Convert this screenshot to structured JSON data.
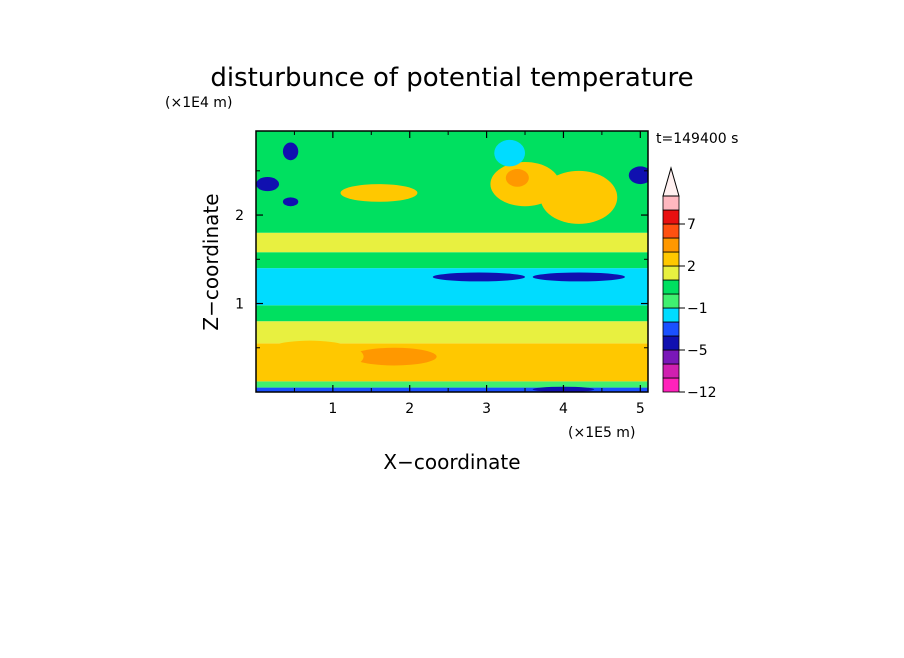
{
  "chart_data": {
    "type": "heatmap",
    "title": "disturbunce of potential temperature",
    "time_label": "t=149400 s",
    "xlabel": "X−coordinate",
    "ylabel": "Z−coordinate",
    "x_unit": "(×1E5 m)",
    "y_unit": "(×1E4 m)",
    "xlim": [
      0,
      5.1
    ],
    "ylim": [
      0,
      2.95
    ],
    "x_ticks": [
      1,
      2,
      3,
      4,
      5
    ],
    "x_tick_labels": [
      "1",
      "2",
      "3",
      "4",
      "5"
    ],
    "y_ticks": [
      1,
      2
    ],
    "y_tick_labels": [
      "1",
      "2"
    ],
    "colorbar": {
      "levels": [
        -12,
        -9,
        -7,
        -5,
        -3,
        -2,
        -1,
        0,
        1,
        2,
        3,
        5,
        7,
        9,
        12
      ],
      "tick_values": [
        -12,
        -5,
        -1,
        2,
        7
      ],
      "tick_labels": [
        "−12",
        "−5",
        "−1",
        "2",
        "7"
      ],
      "colors": [
        "#ff22bb",
        "#d020b0",
        "#7a18b8",
        "#1010b0",
        "#1a50ff",
        "#00dcff",
        "#40f070",
        "#00e060",
        "#e8f040",
        "#ffc800",
        "#ff9800",
        "#ff5010",
        "#e81010",
        "#ffb8c0"
      ],
      "overflow_color": "#fff0f0"
    },
    "bands": [
      {
        "z": [
          0.0,
          0.05
        ],
        "value": -2.5
      },
      {
        "z": [
          0.05,
          0.12
        ],
        "value": -0.5
      },
      {
        "z": [
          0.12,
          0.55
        ],
        "value": 2.6
      },
      {
        "z": [
          0.55,
          0.8
        ],
        "value": 1.5
      },
      {
        "z": [
          0.8,
          0.98
        ],
        "value": 0.5
      },
      {
        "z": [
          0.98,
          1.4
        ],
        "value": -1.5
      },
      {
        "z": [
          1.4,
          1.58
        ],
        "value": 0.5
      },
      {
        "z": [
          1.58,
          1.8
        ],
        "value": 1.5
      },
      {
        "z": [
          1.8,
          2.95
        ],
        "value": 0.5
      }
    ],
    "features": [
      {
        "x": 1.8,
        "z": 0.4,
        "rx": 0.55,
        "rz": 0.1,
        "value": 3.5
      },
      {
        "x": 0.7,
        "z": 0.4,
        "rx": 0.7,
        "rz": 0.18,
        "value": 2.6
      },
      {
        "x": 2.9,
        "z": 1.3,
        "rx": 0.6,
        "rz": 0.05,
        "value": -4
      },
      {
        "x": 4.2,
        "z": 1.3,
        "rx": 0.6,
        "rz": 0.05,
        "value": -4
      },
      {
        "x": 3.5,
        "z": 2.35,
        "rx": 0.45,
        "rz": 0.25,
        "value": 2.5
      },
      {
        "x": 3.4,
        "z": 2.42,
        "rx": 0.15,
        "rz": 0.1,
        "value": 3.5
      },
      {
        "x": 4.2,
        "z": 2.2,
        "rx": 0.5,
        "rz": 0.3,
        "value": 2.5
      },
      {
        "x": 1.6,
        "z": 2.25,
        "rx": 0.5,
        "rz": 0.1,
        "value": 2.5
      },
      {
        "x": 0.45,
        "z": 2.72,
        "rx": 0.1,
        "rz": 0.1,
        "value": -4
      },
      {
        "x": 0.15,
        "z": 2.35,
        "rx": 0.15,
        "rz": 0.08,
        "value": -4
      },
      {
        "x": 0.45,
        "z": 2.15,
        "rx": 0.1,
        "rz": 0.05,
        "value": -4
      },
      {
        "x": 5.0,
        "z": 2.45,
        "rx": 0.15,
        "rz": 0.1,
        "value": -4
      },
      {
        "x": 3.3,
        "z": 2.7,
        "rx": 0.2,
        "rz": 0.15,
        "value": -1.5
      },
      {
        "x": 4.0,
        "z": 0.03,
        "rx": 0.4,
        "rz": 0.03,
        "value": -4
      }
    ]
  }
}
